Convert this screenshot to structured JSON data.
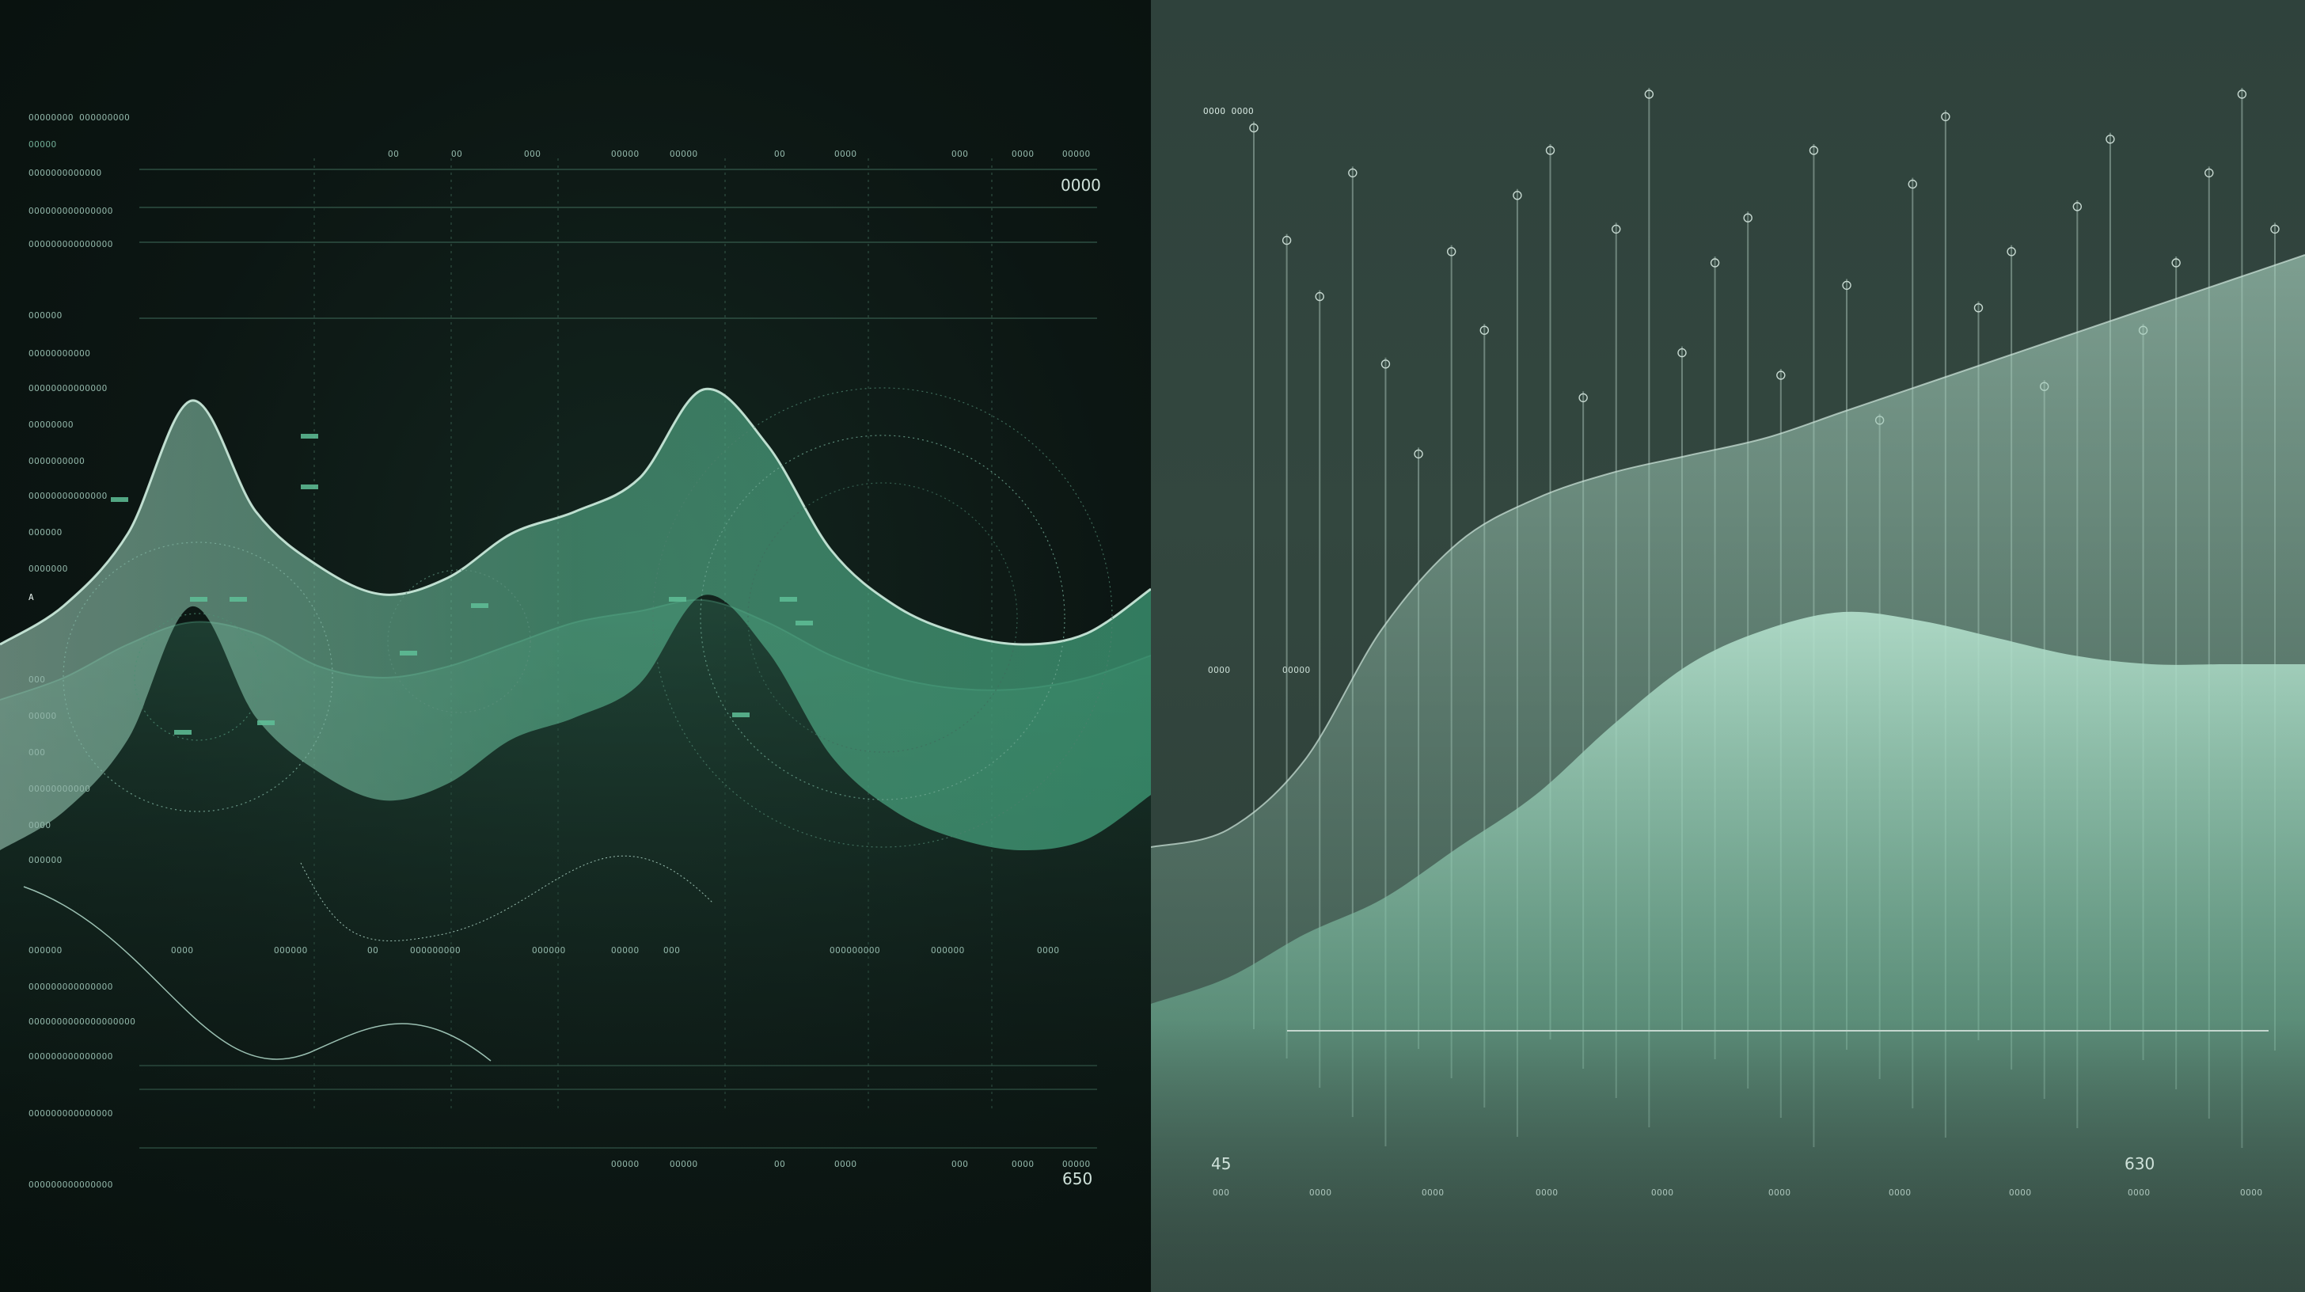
{
  "colors": {
    "accent": "#5fbf98",
    "left_background": "#0c1613",
    "right_background": "#30433d"
  },
  "left_panel": {
    "header_label": "OOOOOOOO OOOOOOOOO",
    "header_sub": "OOOOO",
    "top_value": "0000",
    "bottom_value": "650",
    "top_axis_labels": [
      "OO",
      "OO",
      "OOO",
      "OOOOO",
      "OOOOO",
      "OO",
      "OOOO",
      "OOO",
      "OOOO",
      "OOOOO"
    ],
    "bottom_axis_labels": [
      "OOOOO",
      "OOOOO",
      "OO",
      "OOOO",
      "OOO",
      "OOOO",
      "OOOOO"
    ],
    "row_labels": [
      "OOOOOOOOOOOOO",
      "OOOOOOOOOOOOOOO",
      "OOOOOOOOOOOOOOO",
      "OOOOOO",
      "OOOOOOOOOOO",
      "OOOOOOOOOOOOOO",
      "OOOOOOOO",
      "OOOOOOOOOO",
      "OOOOOOOOOOOOOO",
      "OOOOOO",
      "OOOOOOO",
      "A",
      "OOO",
      "OOOOO",
      "OOO",
      "OOOOOOOOOOO",
      "OOOO",
      "OOOOOO"
    ],
    "lower_labels": [
      "OOOOOOOOOOOOOOO",
      "OOOOOOOOOOOOOOOOOOO",
      "OOOOOOOOOOOOOOO",
      "OOOOOOOOOOOOOOO",
      "OOOOOOOOOOOOOOO"
    ],
    "mid_labels": [
      "OOOOOO",
      "OOOO",
      "OOOOOO",
      "OO",
      "OOOOOOOOO",
      "OOOOOO",
      "OOOOO",
      "OOO",
      "OOOOOOOOO",
      "OOOO",
      "OOOOOO"
    ]
  },
  "right_panel": {
    "header_label": "OOOO OOOO",
    "left_value": "45",
    "right_value": "630",
    "mid_labels": [
      "OOOO",
      "OOOOO"
    ],
    "axis_labels": [
      "OOO",
      "OOOO",
      "OOOO",
      "OOOO",
      "OOOO",
      "OOOO",
      "OOOO",
      "OOOO",
      "OOOO",
      "OOOO"
    ]
  },
  "chart_data": [
    {
      "type": "area",
      "title": "",
      "xlabel": "",
      "ylabel": "",
      "grid": true,
      "series": [
        {
          "values": [
            0.38,
            0.45,
            0.58,
            0.82,
            0.62,
            0.52,
            0.47,
            0.5,
            0.58,
            0.62,
            0.68,
            0.84,
            0.74,
            0.55,
            0.45,
            0.4,
            0.38,
            0.4,
            0.48
          ]
        },
        {
          "values": [
            0.28,
            0.32,
            0.38,
            0.42,
            0.4,
            0.34,
            0.32,
            0.34,
            0.38,
            0.42,
            0.44,
            0.46,
            0.42,
            0.36,
            0.32,
            0.3,
            0.3,
            0.32,
            0.36
          ]
        }
      ]
    },
    {
      "type": "area",
      "title": "",
      "xlabel": "",
      "ylabel": "",
      "grid": true,
      "series": [
        {
          "values": [
            0.2,
            0.22,
            0.3,
            0.45,
            0.55,
            0.6,
            0.63,
            0.65,
            0.67,
            0.7,
            0.73,
            0.76,
            0.79,
            0.82,
            0.85,
            0.88
          ]
        },
        {
          "values": [
            0.02,
            0.05,
            0.1,
            0.14,
            0.2,
            0.26,
            0.34,
            0.41,
            0.45,
            0.47,
            0.46,
            0.44,
            0.42,
            0.41,
            0.41,
            0.41
          ]
        }
      ],
      "vertical_levels": [
        0.92,
        0.82,
        0.77,
        0.88,
        0.71,
        0.63,
        0.81,
        0.74,
        0.86,
        0.9,
        0.68,
        0.83,
        0.95,
        0.72,
        0.8,
        0.84,
        0.7,
        0.9,
        0.78,
        0.66,
        0.87,
        0.93,
        0.76,
        0.81,
        0.69,
        0.85,
        0.91,
        0.74,
        0.8,
        0.88,
        0.95,
        0.83
      ]
    }
  ]
}
